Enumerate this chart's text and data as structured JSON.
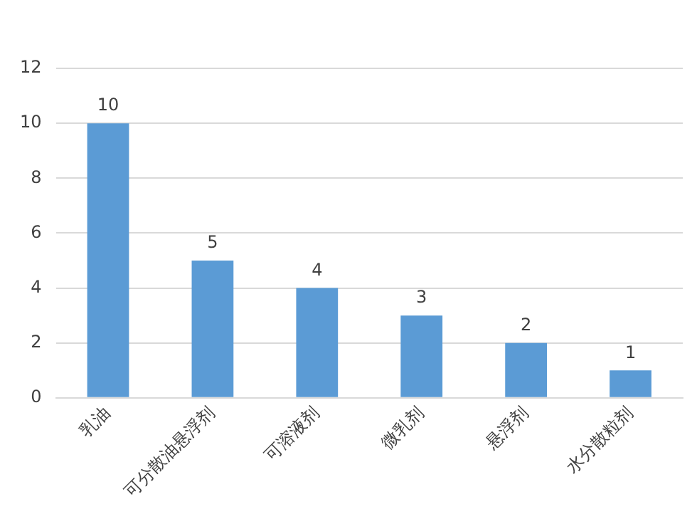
{
  "chart_data": {
    "type": "bar",
    "categories": [
      "乳油",
      "可分散油悬浮剂",
      "可溶液剂",
      "微乳剂",
      "悬浮剂",
      "水分散粒剂"
    ],
    "values": [
      10,
      5,
      4,
      3,
      2,
      1
    ],
    "color": "#5b9bd5",
    "ylim": [
      0,
      12
    ],
    "yticks": [
      0,
      2,
      4,
      6,
      8,
      10,
      12
    ],
    "grid": "y",
    "data_labels": true,
    "legend": false
  }
}
